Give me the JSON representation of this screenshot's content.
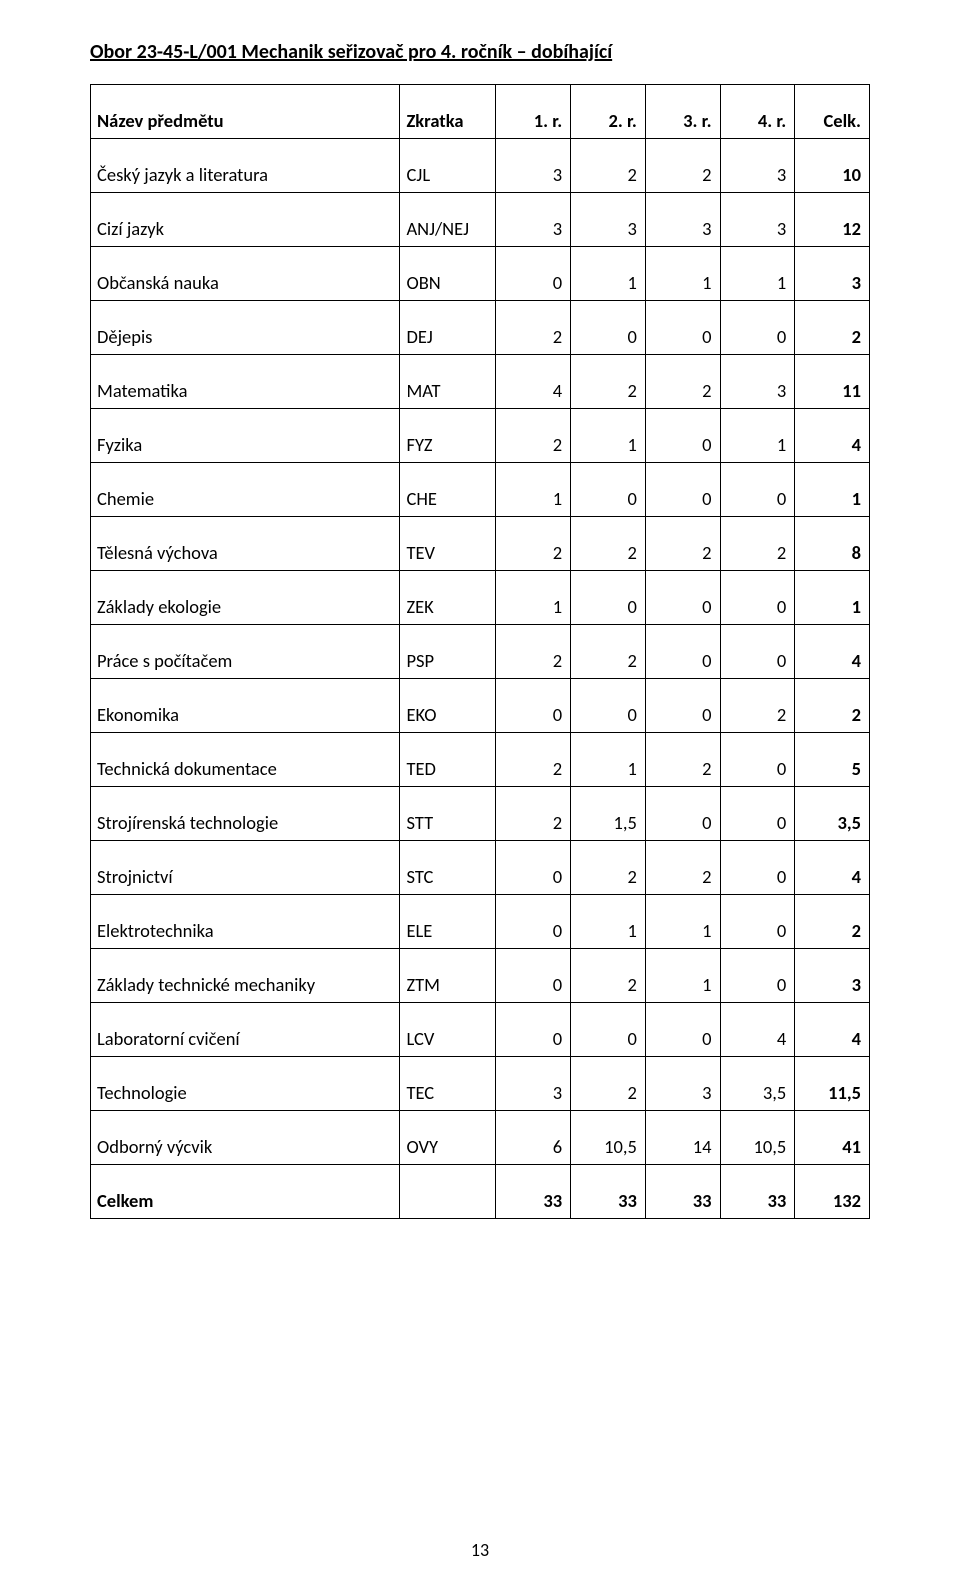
{
  "title": "Obor 23-45-L/001 Mechanik seřizovač pro 4. ročník – dobíhající",
  "page_number": "13",
  "header": {
    "name": "Název předmětu",
    "code": "Zkratka",
    "c1": "1. r.",
    "c2": "2. r.",
    "c3": "3. r.",
    "c4": "4. r.",
    "total": "Celk."
  },
  "rows": [
    {
      "name": "Český jazyk a literatura",
      "code": "CJL",
      "c1": "3",
      "c2": "2",
      "c3": "2",
      "c4": "3",
      "total": "10"
    },
    {
      "name": "Cizí jazyk",
      "code": "ANJ/NEJ",
      "c1": "3",
      "c2": "3",
      "c3": "3",
      "c4": "3",
      "total": "12"
    },
    {
      "name": "Občanská nauka",
      "code": "OBN",
      "c1": "0",
      "c2": "1",
      "c3": "1",
      "c4": "1",
      "total": "3"
    },
    {
      "name": "Dějepis",
      "code": "DEJ",
      "c1": "2",
      "c2": "0",
      "c3": "0",
      "c4": "0",
      "total": "2"
    },
    {
      "name": "Matematika",
      "code": "MAT",
      "c1": "4",
      "c2": "2",
      "c3": "2",
      "c4": "3",
      "total": "11"
    },
    {
      "name": "Fyzika",
      "code": "FYZ",
      "c1": "2",
      "c2": "1",
      "c3": "0",
      "c4": "1",
      "total": "4"
    },
    {
      "name": "Chemie",
      "code": "CHE",
      "c1": "1",
      "c2": "0",
      "c3": "0",
      "c4": "0",
      "total": "1"
    },
    {
      "name": "Tělesná výchova",
      "code": "TEV",
      "c1": "2",
      "c2": "2",
      "c3": "2",
      "c4": "2",
      "total": "8"
    },
    {
      "name": "Základy ekologie",
      "code": "ZEK",
      "c1": "1",
      "c2": "0",
      "c3": "0",
      "c4": "0",
      "total": "1"
    },
    {
      "name": "Práce s počítačem",
      "code": "PSP",
      "c1": "2",
      "c2": "2",
      "c3": "0",
      "c4": "0",
      "total": "4"
    },
    {
      "name": "Ekonomika",
      "code": "EKO",
      "c1": "0",
      "c2": "0",
      "c3": "0",
      "c4": "2",
      "total": "2"
    },
    {
      "name": "Technická dokumentace",
      "code": "TED",
      "c1": "2",
      "c2": "1",
      "c3": "2",
      "c4": "0",
      "total": "5"
    },
    {
      "name": "Strojírenská technologie",
      "code": "STT",
      "c1": "2",
      "c2": "1,5",
      "c3": "0",
      "c4": "0",
      "total": "3,5"
    },
    {
      "name": "Strojnictví",
      "code": "STC",
      "c1": "0",
      "c2": "2",
      "c3": "2",
      "c4": "0",
      "total": "4"
    },
    {
      "name": "Elektrotechnika",
      "code": "ELE",
      "c1": "0",
      "c2": "1",
      "c3": "1",
      "c4": "0",
      "total": "2"
    },
    {
      "name": "Základy technické mechaniky",
      "code": "ZTM",
      "c1": "0",
      "c2": "2",
      "c3": "1",
      "c4": "0",
      "total": "3"
    },
    {
      "name": "Laboratorní cvičení",
      "code": "LCV",
      "c1": "0",
      "c2": "0",
      "c3": "0",
      "c4": "4",
      "total": "4"
    },
    {
      "name": "Technologie",
      "code": "TEC",
      "c1": "3",
      "c2": "2",
      "c3": "3",
      "c4": "3,5",
      "total": "11,5"
    },
    {
      "name": "Odborný výcvik",
      "code": "OVY",
      "c1": "6",
      "c2": "10,5",
      "c3": "14",
      "c4": "10,5",
      "total": "41"
    }
  ],
  "footer": {
    "name": "Celkem",
    "code": "",
    "c1": "33",
    "c2": "33",
    "c3": "33",
    "c4": "33",
    "total": "132"
  }
}
